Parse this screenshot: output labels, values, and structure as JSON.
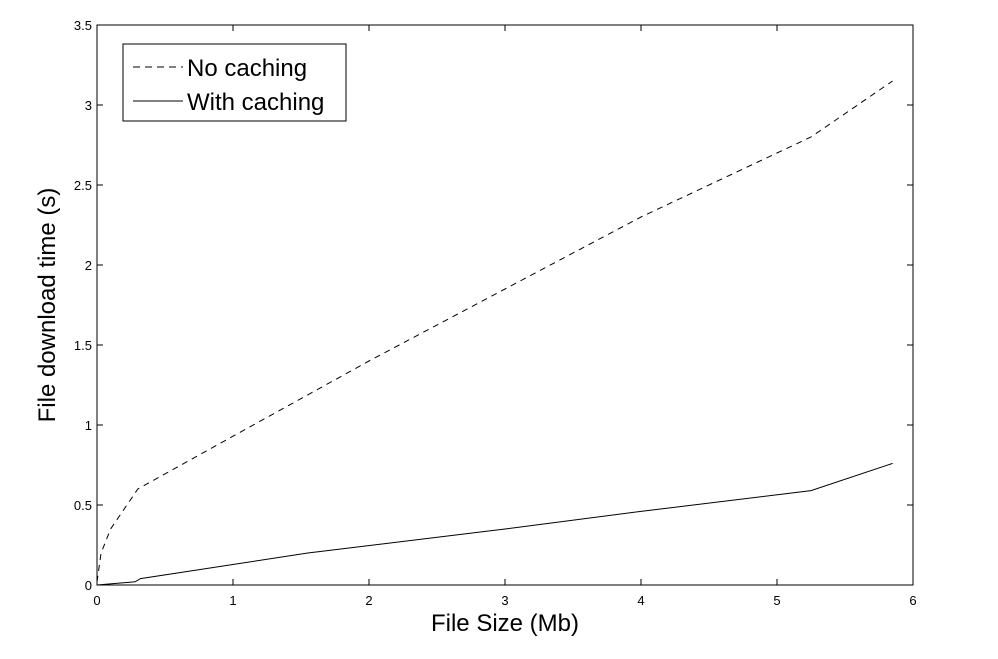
{
  "chart_data": {
    "type": "line",
    "title": "",
    "xlabel": "File Size (Mb)",
    "ylabel": "File download time (s)",
    "xlim": [
      0,
      6
    ],
    "ylim": [
      0,
      3.5
    ],
    "xticks": [
      0,
      1,
      2,
      3,
      4,
      5,
      6
    ],
    "yticks": [
      0,
      0.5,
      1,
      1.5,
      2,
      2.5,
      3,
      3.5
    ],
    "xtick_labels": [
      "0",
      "1",
      "2",
      "3",
      "4",
      "5",
      "6"
    ],
    "ytick_labels": [
      "0",
      "0.5",
      "1",
      "1.5",
      "2",
      "2.5",
      "3",
      "3.5"
    ],
    "grid": false,
    "legend_position": "top-left",
    "series": [
      {
        "name": "No caching",
        "style": "dashed",
        "color": "#000000",
        "x": [
          0,
          0.03,
          0.1,
          0.3,
          1.0,
          2.0,
          3.0,
          4.0,
          5.25,
          5.85
        ],
        "y": [
          0.02,
          0.2,
          0.35,
          0.6,
          0.93,
          1.4,
          1.85,
          2.3,
          2.8,
          3.15
        ]
      },
      {
        "name": "With caching",
        "style": "solid",
        "color": "#000000",
        "x": [
          0,
          0.28,
          0.32,
          1.55,
          3.0,
          4.0,
          5.25,
          5.85
        ],
        "y": [
          0,
          0.02,
          0.04,
          0.2,
          0.35,
          0.46,
          0.59,
          0.76
        ]
      }
    ]
  }
}
